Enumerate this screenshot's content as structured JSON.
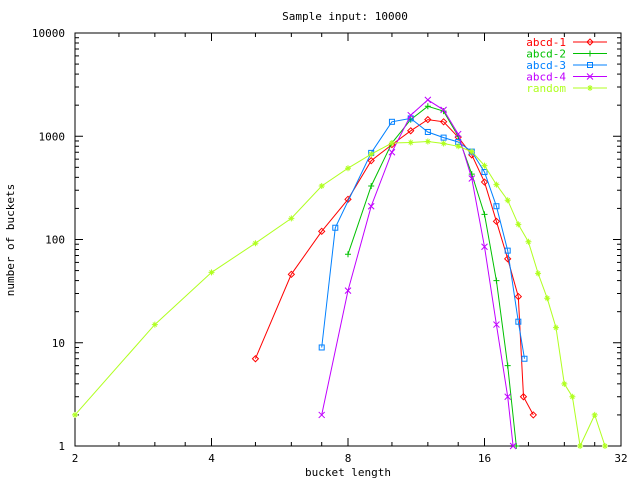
{
  "chart_data": {
    "type": "line",
    "title": "Sample input: 10000",
    "xlabel": "bucket length",
    "ylabel": "number of buckets",
    "xscale": "log2",
    "yscale": "log10",
    "xlim": [
      2,
      32
    ],
    "ylim": [
      1,
      10000
    ],
    "x_ticks": [
      "2",
      "4",
      "8",
      "16",
      "32"
    ],
    "y_ticks": [
      "1",
      "10",
      "100",
      "1000",
      "10000"
    ],
    "grid": false,
    "legend": "top-right",
    "series": [
      {
        "name": "abcd-1",
        "color": "#ff0000",
        "marker": "diamond",
        "points": [
          [
            5,
            7
          ],
          [
            6,
            46
          ],
          [
            7,
            120
          ],
          [
            8,
            245
          ],
          [
            9,
            580
          ],
          [
            10,
            830
          ],
          [
            11,
            1130
          ],
          [
            12,
            1450
          ],
          [
            13,
            1380
          ],
          [
            14,
            980
          ],
          [
            15,
            660
          ],
          [
            16,
            360
          ],
          [
            17,
            150
          ],
          [
            18,
            65
          ],
          [
            19,
            28
          ],
          [
            19.5,
            3
          ],
          [
            20.5,
            2
          ]
        ]
      },
      {
        "name": "abcd-2",
        "color": "#00c000",
        "marker": "plus",
        "points": [
          [
            8,
            72
          ],
          [
            9,
            330
          ],
          [
            10,
            860
          ],
          [
            11,
            1450
          ],
          [
            12,
            1950
          ],
          [
            13,
            1750
          ],
          [
            14,
            1000
          ],
          [
            15,
            430
          ],
          [
            16,
            175
          ],
          [
            17,
            40
          ],
          [
            18,
            6
          ],
          [
            18.8,
            1
          ]
        ]
      },
      {
        "name": "abcd-3",
        "color": "#0080ff",
        "marker": "square",
        "points": [
          [
            7,
            9
          ],
          [
            7.5,
            130
          ],
          [
            9,
            690
          ],
          [
            10,
            1380
          ],
          [
            11,
            1490
          ],
          [
            12,
            1100
          ],
          [
            13,
            970
          ],
          [
            14,
            880
          ],
          [
            15,
            710
          ],
          [
            16,
            450
          ],
          [
            17,
            210
          ],
          [
            18,
            78
          ],
          [
            19,
            16
          ],
          [
            19.6,
            7
          ]
        ]
      },
      {
        "name": "abcd-4",
        "color": "#c000ff",
        "marker": "cross",
        "points": [
          [
            7,
            2
          ],
          [
            8,
            32
          ],
          [
            9,
            210
          ],
          [
            10,
            700
          ],
          [
            11,
            1600
          ],
          [
            12,
            2250
          ],
          [
            13,
            1800
          ],
          [
            14,
            1050
          ],
          [
            15,
            390
          ],
          [
            16,
            85
          ],
          [
            17,
            15
          ],
          [
            18,
            3
          ],
          [
            18.5,
            1
          ]
        ]
      },
      {
        "name": "random",
        "color": "#b0ff20",
        "marker": "star",
        "points": [
          [
            2,
            2
          ],
          [
            3,
            15
          ],
          [
            4,
            48
          ],
          [
            5,
            92
          ],
          [
            6,
            160
          ],
          [
            7,
            330
          ],
          [
            8,
            490
          ],
          [
            9,
            670
          ],
          [
            10,
            860
          ],
          [
            11,
            870
          ],
          [
            12,
            890
          ],
          [
            13,
            850
          ],
          [
            14,
            800
          ],
          [
            15,
            710
          ],
          [
            16,
            520
          ],
          [
            17,
            340
          ],
          [
            18,
            240
          ],
          [
            19,
            140
          ],
          [
            20,
            95
          ],
          [
            21,
            47
          ],
          [
            22,
            27
          ],
          [
            23,
            14
          ],
          [
            24,
            4
          ],
          [
            25,
            3
          ],
          [
            26,
            1
          ],
          [
            28,
            2
          ],
          [
            29.5,
            1
          ]
        ]
      }
    ]
  }
}
